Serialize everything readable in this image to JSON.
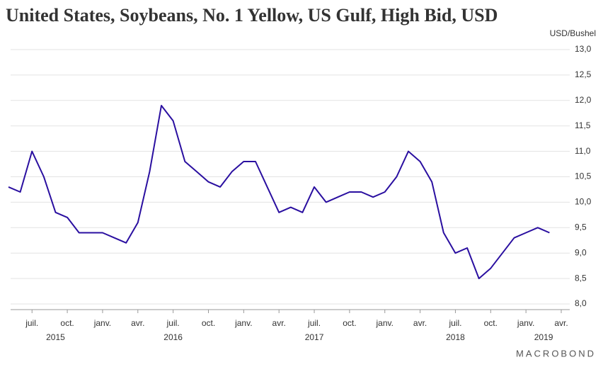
{
  "chart_data": {
    "type": "line",
    "title": "United States, Soybeans, No. 1 Yellow, US Gulf, High Bid, USD",
    "y_unit": "USD/Bushel",
    "source": "MACROBOND",
    "color": "#2a0fa0",
    "x": [
      "2015-05",
      "2015-06",
      "2015-07",
      "2015-08",
      "2015-09",
      "2015-10",
      "2015-11",
      "2015-12",
      "2016-01",
      "2016-02",
      "2016-03",
      "2016-04",
      "2016-05",
      "2016-06",
      "2016-07",
      "2016-08",
      "2016-09",
      "2016-10",
      "2016-11",
      "2016-12",
      "2017-01",
      "2017-02",
      "2017-03",
      "2017-04",
      "2017-05",
      "2017-06",
      "2017-07",
      "2017-08",
      "2017-09",
      "2017-10",
      "2017-11",
      "2017-12",
      "2018-01",
      "2018-02",
      "2018-03",
      "2018-04",
      "2018-05",
      "2018-06",
      "2018-07",
      "2018-08",
      "2018-09",
      "2018-10",
      "2018-11",
      "2018-12",
      "2019-01",
      "2019-02",
      "2019-03"
    ],
    "values": [
      10.3,
      10.2,
      11.0,
      10.5,
      9.8,
      9.7,
      9.4,
      9.4,
      9.4,
      9.3,
      9.2,
      9.6,
      10.6,
      11.9,
      11.6,
      10.8,
      10.6,
      10.4,
      10.3,
      10.6,
      10.8,
      10.8,
      10.3,
      9.8,
      9.9,
      9.8,
      10.3,
      10.0,
      10.1,
      10.2,
      10.2,
      10.1,
      10.2,
      10.5,
      11.0,
      10.8,
      10.4,
      9.4,
      9.0,
      9.1,
      8.5,
      8.7,
      9.0,
      9.3,
      9.4,
      9.5,
      9.4
    ],
    "xlim": [
      "2015-05",
      "2019-04"
    ],
    "xticks": [
      {
        "value": "2015-07",
        "label": "juil."
      },
      {
        "value": "2015-10",
        "label": "oct."
      },
      {
        "value": "2016-01",
        "label": "janv."
      },
      {
        "value": "2016-04",
        "label": "avr."
      },
      {
        "value": "2016-07",
        "label": "juil."
      },
      {
        "value": "2016-10",
        "label": "oct."
      },
      {
        "value": "2017-01",
        "label": "janv."
      },
      {
        "value": "2017-04",
        "label": "avr."
      },
      {
        "value": "2017-07",
        "label": "juil."
      },
      {
        "value": "2017-10",
        "label": "oct."
      },
      {
        "value": "2018-01",
        "label": "janv."
      },
      {
        "value": "2018-04",
        "label": "avr."
      },
      {
        "value": "2018-07",
        "label": "juil."
      },
      {
        "value": "2018-10",
        "label": "oct."
      },
      {
        "value": "2019-01",
        "label": "janv."
      },
      {
        "value": "2019-04",
        "label": "avr."
      }
    ],
    "years": [
      "2015",
      "2016",
      "2017",
      "2018",
      "2019"
    ],
    "ylim": [
      8,
      13
    ],
    "yticks": [
      {
        "value": 8,
        "label": "8,0"
      },
      {
        "value": 8.5,
        "label": "8,5"
      },
      {
        "value": 9,
        "label": "9,0"
      },
      {
        "value": 9.5,
        "label": "9,5"
      },
      {
        "value": 10,
        "label": "10,0"
      },
      {
        "value": 10.5,
        "label": "10,5"
      },
      {
        "value": 11,
        "label": "11,0"
      },
      {
        "value": 11.5,
        "label": "11,5"
      },
      {
        "value": 12,
        "label": "12,0"
      },
      {
        "value": 12.5,
        "label": "12,5"
      },
      {
        "value": 13,
        "label": "13,0"
      }
    ],
    "grid": true
  }
}
